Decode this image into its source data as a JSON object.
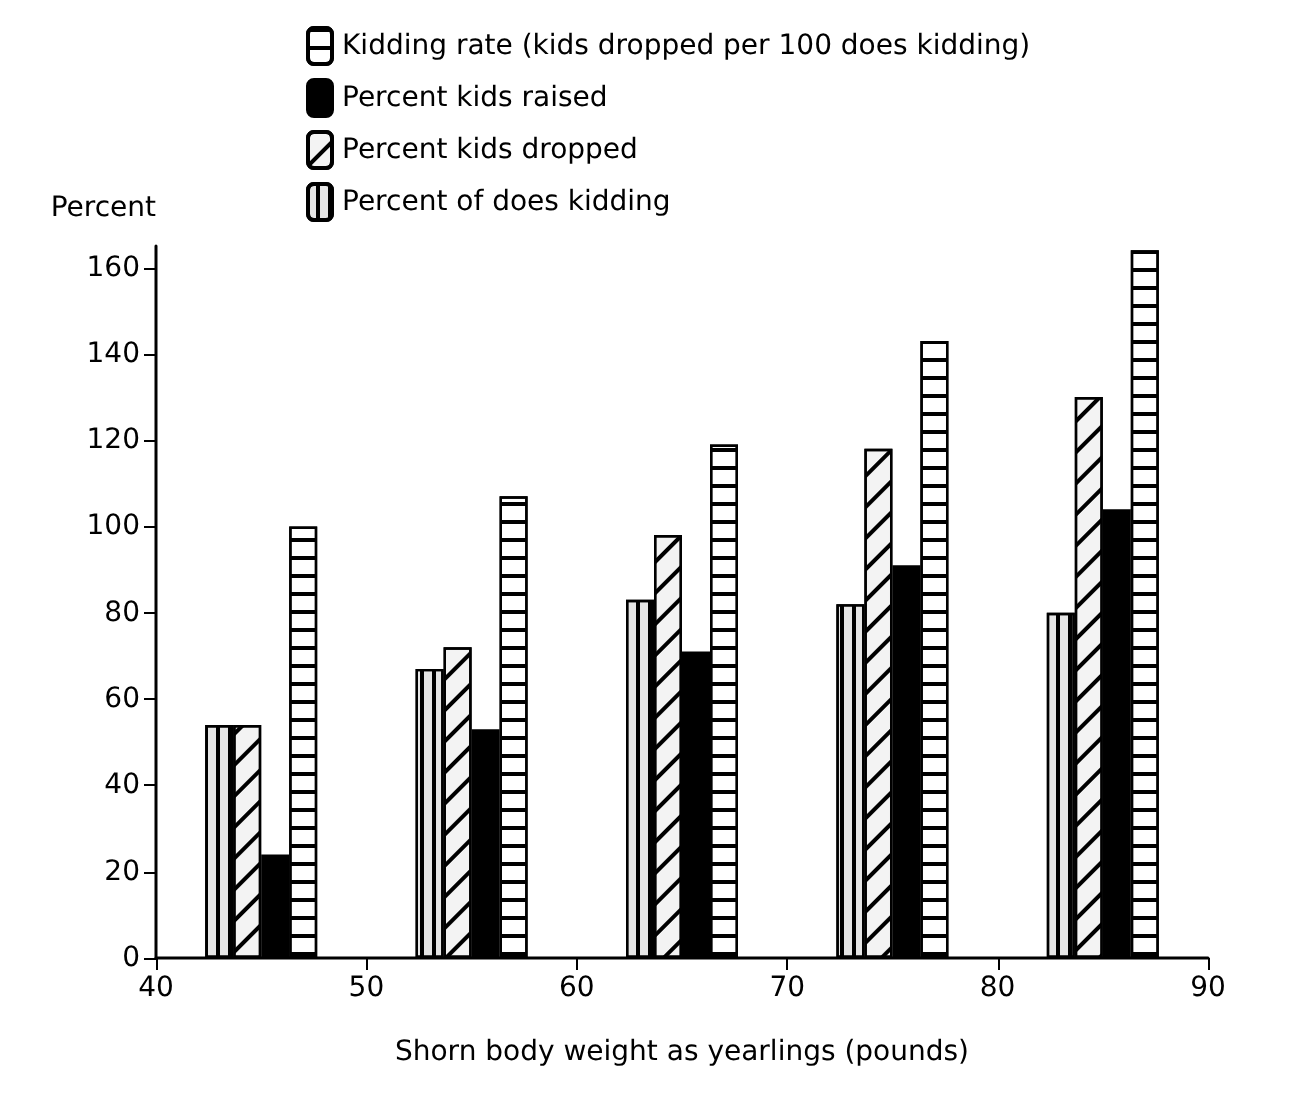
{
  "chart_data": {
    "type": "bar",
    "xlabel": "Shorn body weight as yearlings (pounds)",
    "ylabel": "Percent",
    "x": [
      45,
      55,
      65,
      75,
      85
    ],
    "series": [
      {
        "name": "Percent of does kidding",
        "color": "#e6e6e6",
        "values": [
          54,
          67,
          83,
          82,
          80
        ]
      },
      {
        "name": "Percent kids dropped",
        "color": "#f3f3f3",
        "values": [
          54,
          72,
          98,
          118,
          130
        ]
      },
      {
        "name": "Percent kids raised",
        "color": "#000000",
        "values": [
          24,
          53,
          71,
          91,
          104
        ]
      },
      {
        "name": "Kidding rate (kids dropped per 100 does kidding)",
        "color": "#ffffff",
        "values": [
          100,
          107,
          119,
          143,
          164
        ]
      }
    ],
    "xlim": [
      40,
      90
    ],
    "xticks": [
      40,
      50,
      60,
      70,
      80,
      90
    ],
    "ylim": [
      0,
      165
    ],
    "yticks": [
      0,
      20,
      40,
      60,
      80,
      100,
      120,
      140,
      160
    ],
    "grid": false,
    "legend": "top"
  }
}
